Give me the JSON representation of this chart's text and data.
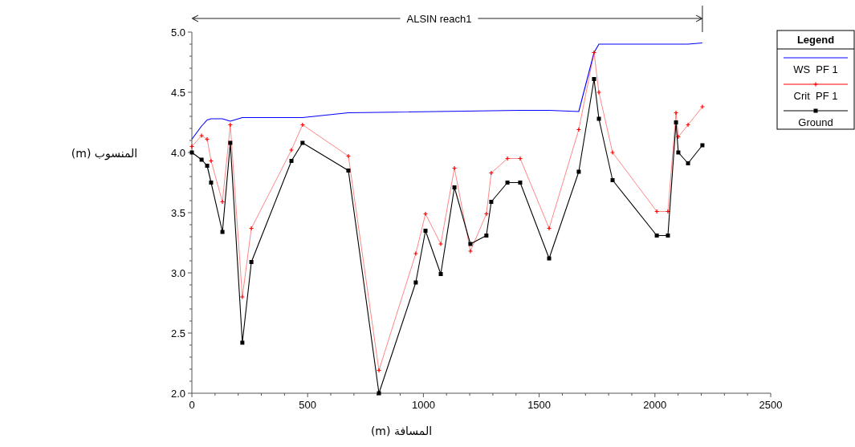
{
  "chart_data": {
    "type": "line",
    "xlabel": "المسافة (m)",
    "ylabel": "المنسوب (m)",
    "legend_title": "Legend",
    "annotations": [
      "ALSIN reach1"
    ],
    "xlim": [
      0,
      2500
    ],
    "ylim": [
      2.0,
      5.0
    ],
    "xticks": [
      0,
      500,
      1000,
      1500,
      2000,
      2500
    ],
    "yticks": [
      {
        "value": 2.0,
        "label": "2.0"
      },
      {
        "value": 2.5,
        "label": "2.5"
      },
      {
        "value": 3.0,
        "label": "3.0"
      },
      {
        "value": 3.5,
        "label": "3.5"
      },
      {
        "value": 4.0,
        "label": "4.0"
      },
      {
        "value": 4.5,
        "label": "4.5"
      },
      {
        "value": 5.0,
        "label": "5.0"
      }
    ],
    "legend": "top right",
    "grid": false,
    "series": [
      {
        "name": "WS  PF 1",
        "color": "#0000ff",
        "marker": "none",
        "x": [
          0,
          42,
          66,
          83,
          132,
          166,
          218,
          478,
          676,
          1418,
          1543,
          1671,
          1737,
          1758,
          2143,
          2205
        ],
        "values": [
          4.11,
          4.22,
          4.27,
          4.28,
          4.28,
          4.26,
          4.29,
          4.29,
          4.33,
          4.35,
          4.35,
          4.34,
          4.83,
          4.9,
          4.9,
          4.91
        ]
      },
      {
        "name": "Crit  PF 1",
        "color": "#ff0000",
        "marker": "cross",
        "x": [
          0,
          42,
          66,
          83,
          132,
          166,
          218,
          257,
          430,
          478,
          676,
          808,
          967,
          1009,
          1075,
          1134,
          1203,
          1272,
          1293,
          1363,
          1418,
          1543,
          1671,
          1737,
          1758,
          1817,
          2008,
          2056,
          2091,
          2101,
          2143,
          2205
        ],
        "values": [
          4.05,
          4.14,
          4.11,
          3.93,
          3.59,
          4.23,
          2.8,
          3.37,
          4.02,
          4.23,
          3.97,
          2.19,
          3.16,
          3.49,
          3.24,
          3.87,
          3.18,
          3.49,
          3.83,
          3.95,
          3.95,
          3.37,
          4.19,
          4.83,
          4.5,
          4.0,
          3.51,
          3.51,
          4.33,
          4.13,
          4.23,
          4.38
        ]
      },
      {
        "name": "Ground",
        "color": "#000000",
        "marker": "square",
        "x": [
          0,
          42,
          66,
          83,
          132,
          166,
          218,
          257,
          430,
          478,
          676,
          808,
          967,
          1009,
          1075,
          1134,
          1203,
          1272,
          1293,
          1363,
          1418,
          1543,
          1671,
          1737,
          1758,
          1817,
          2008,
          2056,
          2091,
          2101,
          2143,
          2205
        ],
        "values": [
          4.0,
          3.94,
          3.89,
          3.75,
          3.34,
          4.08,
          2.42,
          3.09,
          3.93,
          4.08,
          3.85,
          2.0,
          2.92,
          3.35,
          2.99,
          3.71,
          3.24,
          3.31,
          3.59,
          3.75,
          3.75,
          3.12,
          3.84,
          4.61,
          4.28,
          3.77,
          3.31,
          3.31,
          4.25,
          4.0,
          3.91,
          4.06
        ]
      }
    ]
  }
}
